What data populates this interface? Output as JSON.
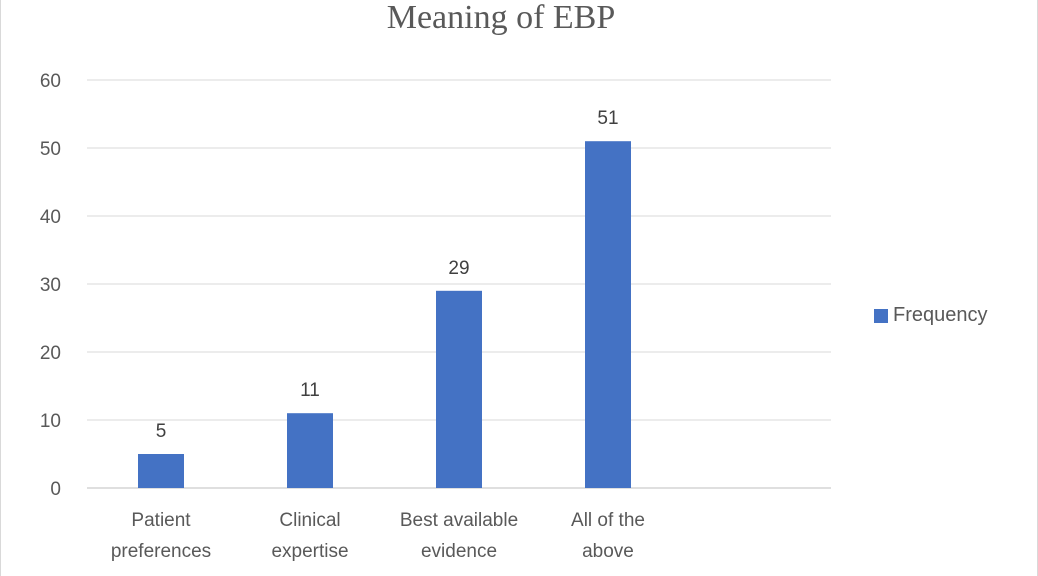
{
  "chart_data": {
    "type": "bar",
    "title": "Meaning  of EBP",
    "categories": [
      [
        "Patient",
        "preferences"
      ],
      [
        "Clinical",
        "expertise"
      ],
      [
        "Best available",
        "evidence"
      ],
      [
        "All of the",
        "above"
      ]
    ],
    "series": [
      {
        "name": "Frequency",
        "values": [
          5,
          11,
          29,
          51
        ],
        "color": "#4472c4"
      }
    ],
    "ylim": [
      0,
      60
    ],
    "yticks": [
      0,
      10,
      20,
      30,
      40,
      50,
      60
    ],
    "grid": true,
    "legend_position": "right",
    "data_labels": true
  }
}
